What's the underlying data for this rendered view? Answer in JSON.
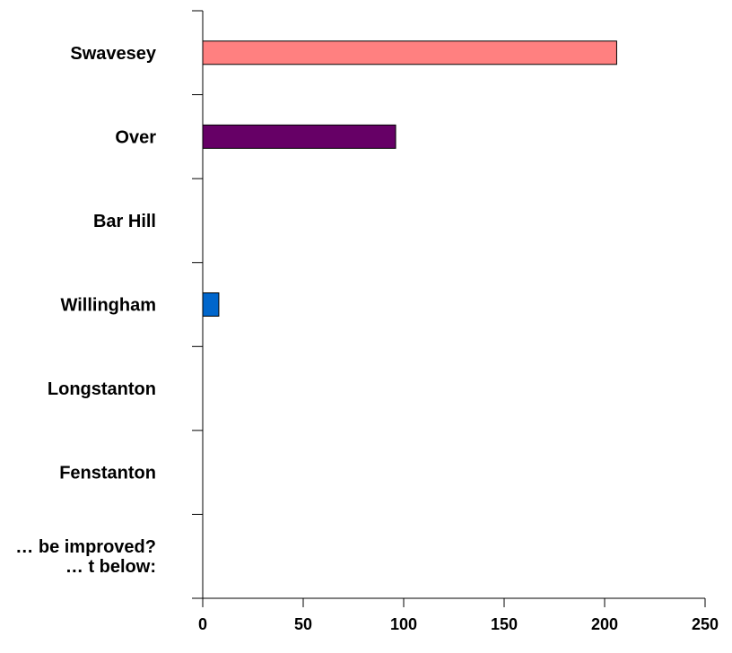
{
  "chart_data": {
    "type": "bar",
    "orientation": "horizontal",
    "categories": [
      "Swavesey",
      "Over",
      "Bar Hill",
      "Willingham",
      "Longstanton",
      "Fenstanton",
      "… be improved?\n… t below:"
    ],
    "values": [
      206,
      96,
      0,
      8,
      0,
      0,
      0
    ],
    "bar_colors": [
      "#ff8080",
      "#660066",
      "#000000",
      "#0066cc",
      "#000000",
      "#000000",
      "#000000"
    ],
    "xlim": [
      0,
      250
    ],
    "xticks": [
      "0",
      "50",
      "100",
      "150",
      "200",
      "250"
    ],
    "grid": false,
    "legend": "none"
  }
}
